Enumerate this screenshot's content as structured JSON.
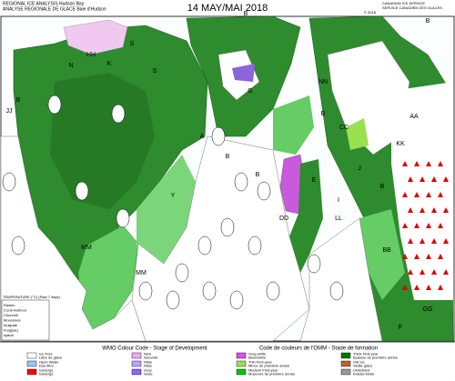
{
  "header": {
    "title_en": "REGIONAL ICE ANALYSIS  Hudson Bay",
    "title_fr": "ANALYSE REGIONALE DE GLACE  Baie d'Hudson",
    "date": "14 MAY/MAI 2018",
    "agency": "CANADIAN ICE SERVICE",
    "agency_fr": "SERVICE CANADIEN DES GLACES",
    "copyright": "© 2018"
  },
  "region_labels": [
    "HH",
    "S",
    "S",
    "N",
    "K",
    "B",
    "JJ",
    "A",
    "B",
    "B",
    "G",
    "NN",
    "CC",
    "B",
    "AA",
    "KK",
    "B",
    "LL",
    "DD",
    "Y",
    "MM",
    "MM",
    "E",
    "F",
    "BB",
    "GG",
    "J",
    "I",
    "B",
    "B"
  ],
  "temperature_table": {
    "title": "TEMPERATURE (°C) (Past 7 days)",
    "stations": [
      "Rankin",
      "Coral Harbour",
      "Churchill",
      "Moosonee",
      "Inukjuak",
      "Kuujjuaq",
      "Iqaluit"
    ]
  },
  "legend": {
    "title_en": "WMO Colour Code - Stage of Development",
    "title_fr": "Code de couleurs de l'OMM - Stade de formation",
    "items": [
      {
        "label": "Ice Free",
        "label_fr": "Libre de glace",
        "color": "#ffffff"
      },
      {
        "label": "Open Water",
        "label_fr": "Eau libre",
        "color": "#96c8ff"
      },
      {
        "label": "Icebergs",
        "label_fr": "Icebergs",
        "color": "#ff0000"
      },
      {
        "label": "New",
        "label_fr": "Nouvelle",
        "color": "#f0aaf0"
      },
      {
        "label": "Nilas",
        "label_fr": "Nilas",
        "color": "#b9a0ff"
      },
      {
        "label": "Grey",
        "label_fr": "Grise",
        "color": "#8c64ff"
      },
      {
        "label": "Grey-white",
        "label_fr": "Blanchâtre",
        "color": "#dc50eb"
      },
      {
        "label": "Thin First-year",
        "label_fr": "Mince de première année",
        "color": "#9be050"
      },
      {
        "label": "Medium First-year",
        "label_fr": "Moyenne de première année",
        "color": "#00c800"
      },
      {
        "label": "Thick First-year",
        "label_fr": "Épaisse de première année",
        "color": "#007800"
      },
      {
        "label": "Old Ice",
        "label_fr": "Vieille glace",
        "color": "#b46432"
      },
      {
        "label": "Undefined",
        "label_fr": "Indéterminée",
        "color": "#999999"
      }
    ]
  }
}
